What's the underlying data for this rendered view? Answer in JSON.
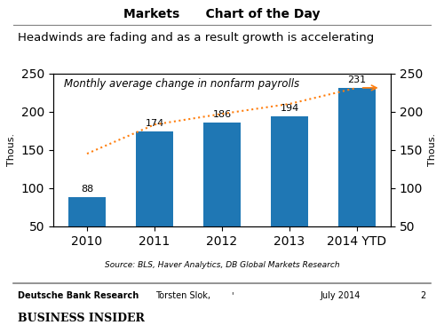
{
  "chart_data": {
    "type": "bar",
    "title": "Markets      Chart of the Day",
    "subtitle": "Headwinds are fading and as a result growth is accelerating",
    "categories": [
      "2010",
      "2011",
      "2012",
      "2013",
      "2014 YTD"
    ],
    "series": [
      {
        "type": "bar",
        "values": [
          88,
          174,
          186,
          194,
          231
        ],
        "data_labels": true
      },
      {
        "type": "line",
        "values": [
          145,
          183,
          197,
          210,
          231
        ],
        "line_style": "dotted"
      }
    ],
    "ylim": [
      50,
      250
    ],
    "yticks": [
      50,
      100,
      150,
      200,
      250
    ],
    "y2lim": [
      50,
      250
    ],
    "y2ticks": [
      50,
      100,
      150,
      200,
      250
    ],
    "y_label": "Thous.",
    "y2_label": "Thous.",
    "annotations": [
      "Monthly average change in nonfarm payrolls"
    ],
    "source": "Source: BLS, Haver Analytics, DB Global Markets Research",
    "footer": [
      "Deutsche Bank Research",
      "Torsten Slok,",
      "'",
      "July 2014",
      "2"
    ],
    "brand": "BUSINESS INSIDER",
    "grid": false
  }
}
